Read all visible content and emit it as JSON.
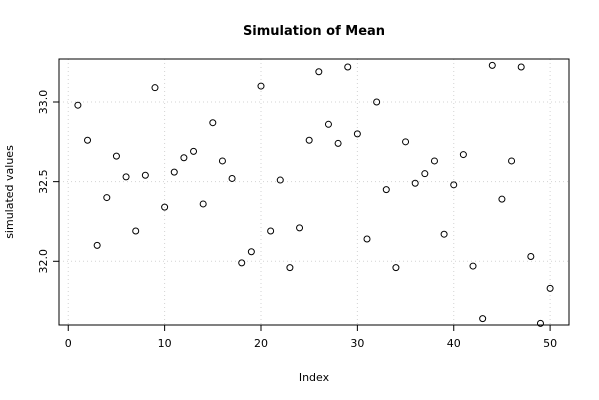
{
  "chart_data": {
    "type": "scatter",
    "title": "Simulation of Mean",
    "xlabel": "Index",
    "ylabel": "simulated values",
    "xlim": [
      -0.96,
      51.96
    ],
    "ylim": [
      31.6,
      33.27
    ],
    "x_ticks": [
      0,
      10,
      20,
      30,
      40,
      50
    ],
    "y_ticks": [
      32.0,
      32.5,
      33.0
    ],
    "grid": true,
    "marker": "open-circle",
    "x": [
      1,
      2,
      3,
      4,
      5,
      6,
      7,
      8,
      9,
      10,
      11,
      12,
      13,
      14,
      15,
      16,
      17,
      18,
      19,
      20,
      21,
      22,
      23,
      24,
      25,
      26,
      27,
      28,
      29,
      30,
      31,
      32,
      33,
      34,
      35,
      36,
      37,
      38,
      39,
      40,
      41,
      42,
      43,
      44,
      45,
      46,
      47,
      48,
      49,
      50
    ],
    "y": [
      32.98,
      32.76,
      32.1,
      32.4,
      32.66,
      32.53,
      32.19,
      32.54,
      33.09,
      32.34,
      32.56,
      32.65,
      32.69,
      32.36,
      32.87,
      32.63,
      32.52,
      31.99,
      32.06,
      33.1,
      32.19,
      32.51,
      31.96,
      32.21,
      32.76,
      33.19,
      32.86,
      32.74,
      33.22,
      32.8,
      32.14,
      33.0,
      32.45,
      31.96,
      32.75,
      32.49,
      32.55,
      32.63,
      32.17,
      32.48,
      32.67,
      31.97,
      31.64,
      33.23,
      32.39,
      32.63,
      33.22,
      32.03,
      31.61,
      31.83
    ]
  }
}
